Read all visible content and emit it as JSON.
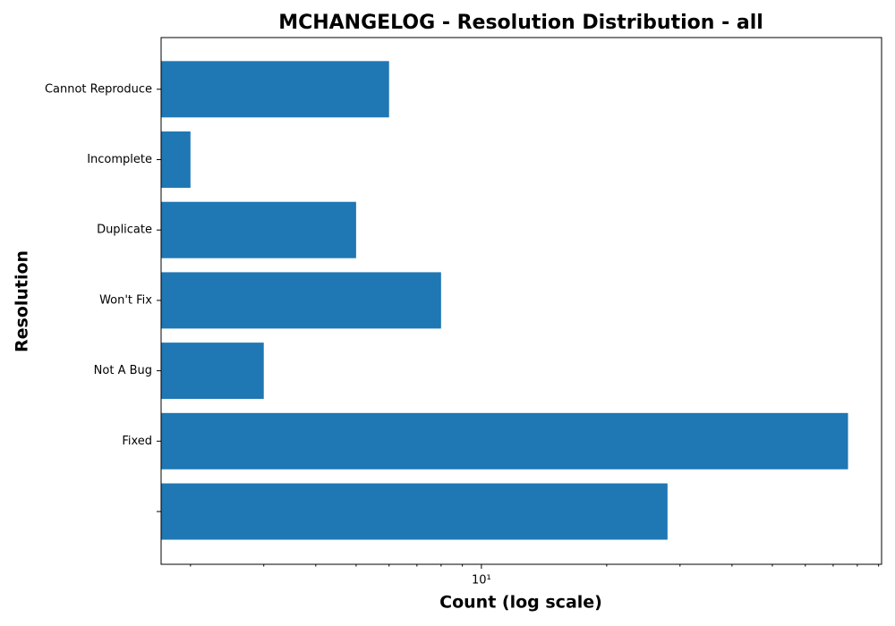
{
  "chart_data": {
    "type": "barh",
    "title": "MCHANGELOG - Resolution Distribution - all",
    "xlabel": "Count (log scale)",
    "ylabel": "Resolution",
    "categories": [
      null,
      "Fixed",
      "Not A Bug",
      "Won't Fix",
      "Duplicate",
      "Incomplete",
      "Cannot Reproduce"
    ],
    "values": [
      28,
      76,
      3,
      8,
      5,
      2,
      6
    ],
    "color": "#1f77b4",
    "xscale": "log",
    "xlim": [
      1.7,
      91.5
    ],
    "xticks": [
      {
        "value": 10,
        "label": "10¹"
      }
    ],
    "xminorticks": [
      2,
      3,
      4,
      5,
      6,
      7,
      8,
      9,
      20,
      30,
      40,
      50,
      60,
      70,
      80,
      90
    ],
    "grid": false
  }
}
